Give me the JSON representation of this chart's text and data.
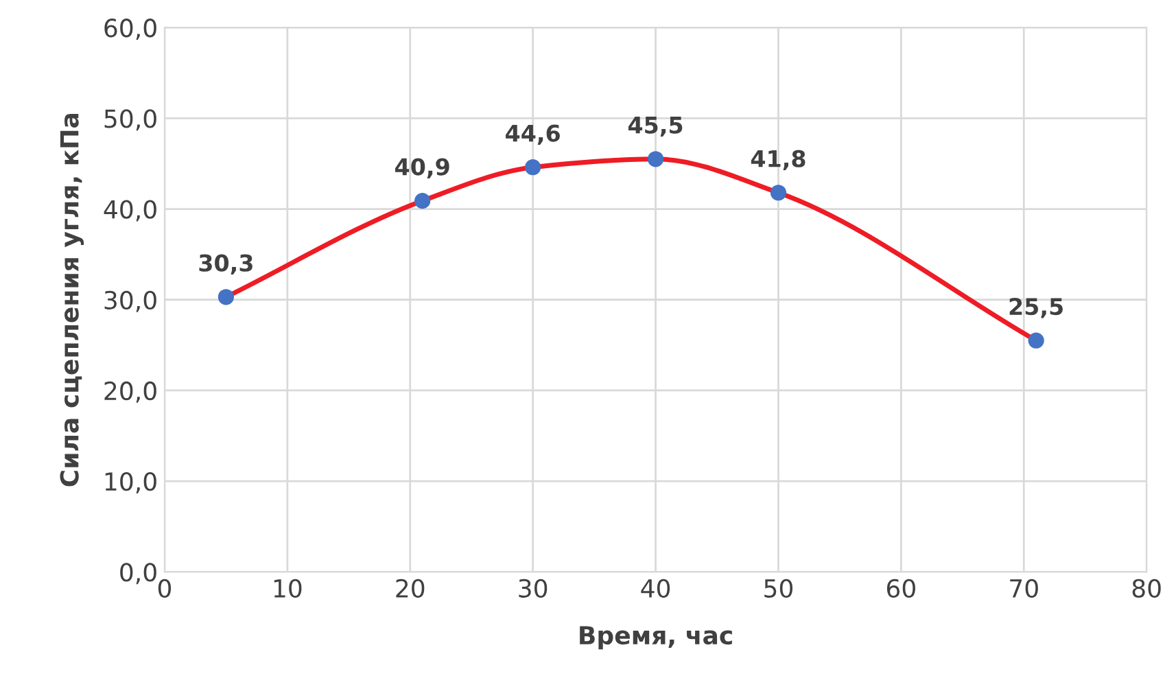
{
  "chart_data": {
    "type": "line",
    "xlabel": "Время, час",
    "ylabel": "Сила сцепления угля, кПа",
    "x": [
      5,
      21,
      30,
      40,
      50,
      71
    ],
    "series": [
      {
        "color": "#ee1c25",
        "marker": "none",
        "line_style": "solid",
        "values": [
          30.3,
          40.9,
          44.6,
          45.5,
          41.8,
          25.5
        ]
      },
      {
        "type": "scatter",
        "color": "#4472c4",
        "marker": "circle",
        "values": [
          30.3,
          40.9,
          44.6,
          45.5,
          41.8,
          25.5
        ],
        "value_labels": [
          "30,3",
          "40,9",
          "44,6",
          "45,5",
          "41,8",
          "25,5"
        ]
      }
    ],
    "xlim": [
      0,
      80
    ],
    "xticks": [
      0,
      10,
      20,
      30,
      40,
      50,
      60,
      70,
      80
    ],
    "ylim": [
      0,
      60
    ],
    "yticks": [
      {
        "value": 0,
        "label": "0,0"
      },
      {
        "value": 10,
        "label": "10,0"
      },
      {
        "value": 20,
        "label": "20,0"
      },
      {
        "value": 30,
        "label": "30,0"
      },
      {
        "value": 40,
        "label": "40,0"
      },
      {
        "value": 50,
        "label": "50,0"
      },
      {
        "value": 60,
        "label": "60,0"
      }
    ],
    "grid": true
  }
}
